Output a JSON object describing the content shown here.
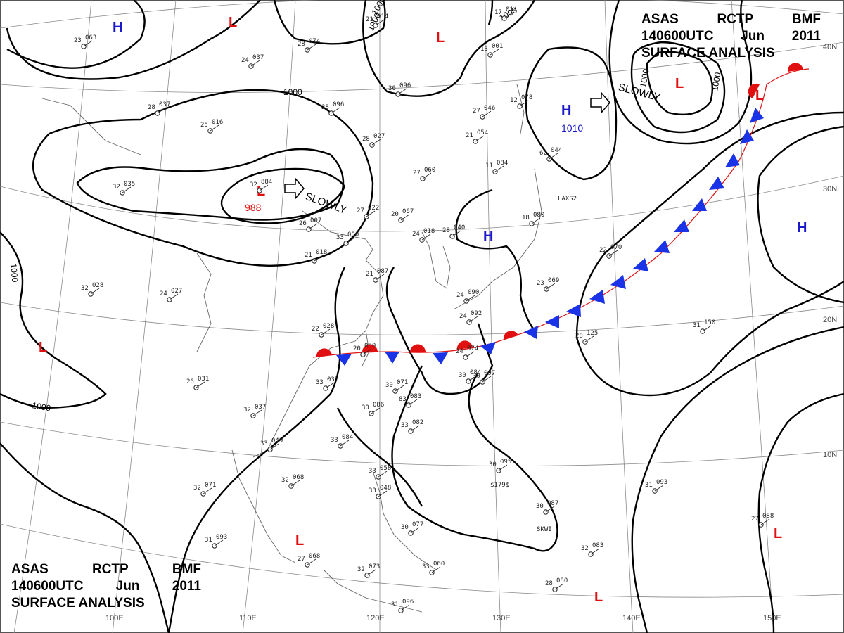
{
  "header": {
    "line1": [
      "ASAS",
      "RCTP",
      "BMF"
    ],
    "line2": [
      "140600UTC",
      "Jun",
      "2011"
    ],
    "line3": "SURFACE ANALYSIS"
  },
  "grid": {
    "longitudes": [
      "110E",
      "120E",
      "130E",
      "140E",
      "150E"
    ],
    "latitudes": [
      "40N",
      "30N",
      "20N",
      "10N"
    ],
    "lower_left_partial": "100E"
  },
  "pressure_systems": [
    {
      "type": "H",
      "color": "#1a1acc"
    },
    {
      "type": "L",
      "color": "#e01010"
    },
    {
      "type": "L",
      "color": "#e01010"
    },
    {
      "type": "L",
      "color": "#e01010",
      "value": "988"
    },
    {
      "type": "H",
      "color": "#1a1acc",
      "value": "1010"
    },
    {
      "type": "L",
      "color": "#e01010"
    },
    {
      "type": "H",
      "color": "#1a1acc"
    },
    {
      "type": "H",
      "color": "#1a1acc"
    },
    {
      "type": "L",
      "color": "#e01010"
    },
    {
      "type": "L",
      "color": "#e01010"
    },
    {
      "type": "L",
      "color": "#e01010"
    },
    {
      "type": "L",
      "color": "#e01010"
    },
    {
      "type": "L",
      "color": "#e01010"
    }
  ],
  "movement_labels": [
    "SLOWLY",
    "SLOWLY"
  ],
  "isobar_labels": [
    "1000",
    "1000",
    "1000",
    "1000",
    "1000",
    "1000",
    "1000",
    "1000"
  ],
  "colors": {
    "high": "#1a1acc",
    "low": "#e01010",
    "cold_front": "#1a33e6",
    "warm_front": "#e01010",
    "isobar": "#000000",
    "coast": "#666666",
    "grid": "#888888"
  },
  "station_labels": [
    "LAXS2",
    "SKWI",
    "$179$"
  ],
  "observations": [
    [
      "23",
      "063"
    ],
    [
      "24",
      "037"
    ],
    [
      "28",
      "074"
    ],
    [
      "21",
      "014"
    ],
    [
      "17",
      "014"
    ],
    [
      "28",
      "037"
    ],
    [
      "25",
      "016"
    ],
    [
      "28",
      "096"
    ],
    [
      "28",
      "027"
    ],
    [
      "30",
      "096"
    ],
    [
      "13",
      "001"
    ],
    [
      "27",
      "046"
    ],
    [
      "12",
      "078"
    ],
    [
      "21",
      "054"
    ],
    [
      "32",
      "035"
    ],
    [
      "32",
      "884"
    ],
    [
      "26",
      "007"
    ],
    [
      "27",
      "022"
    ],
    [
      "20",
      "067"
    ],
    [
      "27",
      "060"
    ],
    [
      "11",
      "084"
    ],
    [
      "62",
      "044"
    ],
    [
      "18",
      "080"
    ],
    [
      "33",
      "000"
    ],
    [
      "21",
      "018"
    ],
    [
      "24",
      "018"
    ],
    [
      "28",
      "040"
    ],
    [
      "21",
      "087"
    ],
    [
      "22",
      "070"
    ],
    [
      "23",
      "069"
    ],
    [
      "32",
      "028"
    ],
    [
      "24",
      "027"
    ],
    [
      "24",
      "090"
    ],
    [
      "24",
      "092"
    ],
    [
      "22",
      "028"
    ],
    [
      "20",
      "050"
    ],
    [
      "24",
      "074"
    ],
    [
      "28",
      "125"
    ],
    [
      "31",
      "150"
    ],
    [
      "26",
      "031"
    ],
    [
      "33",
      "037"
    ],
    [
      "30",
      "071"
    ],
    [
      "30",
      "084"
    ],
    [
      "30",
      "097"
    ],
    [
      "30",
      "086"
    ],
    [
      "32",
      "037"
    ],
    [
      "83",
      "083"
    ],
    [
      "33",
      "082"
    ],
    [
      "33",
      "049"
    ],
    [
      "33",
      "084"
    ],
    [
      "32",
      "071"
    ],
    [
      "32",
      "068"
    ],
    [
      "33",
      "058"
    ],
    [
      "33",
      "048"
    ],
    [
      "30",
      "095"
    ],
    [
      "31",
      "093"
    ],
    [
      "30",
      "087"
    ],
    [
      "27",
      "088"
    ],
    [
      "31",
      "093"
    ],
    [
      "27",
      "068"
    ],
    [
      "32",
      "073"
    ],
    [
      "30",
      "077"
    ],
    [
      "33",
      "060"
    ],
    [
      "32",
      "083"
    ],
    [
      "28",
      "080"
    ],
    [
      "31",
      "096"
    ]
  ]
}
